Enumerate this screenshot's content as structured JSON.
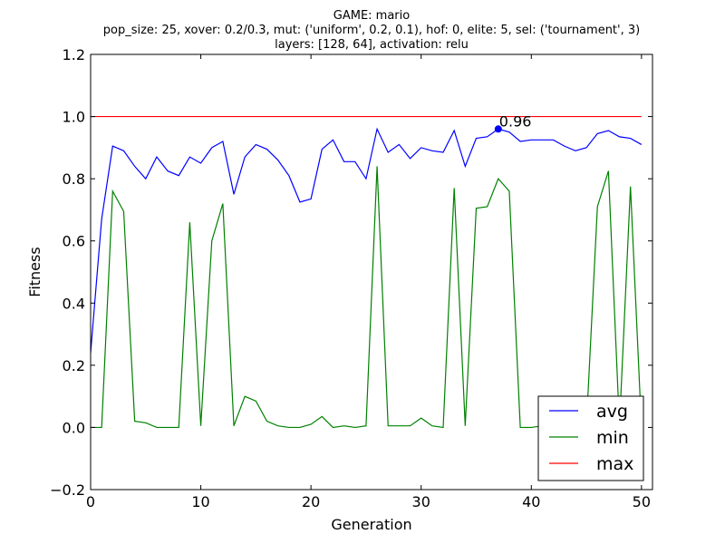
{
  "chart_data": {
    "type": "line",
    "title_lines": [
      "GAME: mario",
      "pop_size: 25, xover: 0.2/0.3, mut: ('uniform', 0.2, 0.1), hof: 0, elite: 5, sel: ('tournament', 3)",
      "layers: [128, 64], activation: relu"
    ],
    "xlabel": "Generation",
    "ylabel": "Fitness",
    "xlim": [
      0,
      51
    ],
    "ylim": [
      -0.2,
      1.2
    ],
    "xticks": [
      0,
      10,
      20,
      30,
      40,
      50
    ],
    "xtick_labels": [
      "0",
      "10",
      "20",
      "30",
      "40",
      "50"
    ],
    "yticks": [
      -0.2,
      0.0,
      0.2,
      0.4,
      0.6,
      0.8,
      1.0,
      1.2
    ],
    "ytick_labels": [
      "−0.2",
      "0.0",
      "0.2",
      "0.4",
      "0.6",
      "0.8",
      "1.0",
      "1.2"
    ],
    "grid": false,
    "legend_position": "lower-right",
    "x": [
      0,
      1,
      2,
      3,
      4,
      5,
      6,
      7,
      8,
      9,
      10,
      11,
      12,
      13,
      14,
      15,
      16,
      17,
      18,
      19,
      20,
      21,
      22,
      23,
      24,
      25,
      26,
      27,
      28,
      29,
      30,
      31,
      32,
      33,
      34,
      35,
      36,
      37,
      38,
      39,
      40,
      41,
      42,
      43,
      44,
      45,
      46,
      47,
      48,
      49,
      50
    ],
    "series": [
      {
        "name": "avg",
        "color": "#0000ff",
        "values": [
          0.24,
          0.67,
          0.905,
          0.89,
          0.84,
          0.8,
          0.87,
          0.825,
          0.81,
          0.87,
          0.85,
          0.9,
          0.92,
          0.75,
          0.87,
          0.91,
          0.895,
          0.86,
          0.81,
          0.725,
          0.735,
          0.895,
          0.925,
          0.855,
          0.855,
          0.8,
          0.96,
          0.885,
          0.91,
          0.865,
          0.9,
          0.89,
          0.885,
          0.955,
          0.84,
          0.93,
          0.935,
          0.96,
          0.95,
          0.92,
          0.925,
          0.925,
          0.925,
          0.905,
          0.89,
          0.9,
          0.945,
          0.955,
          0.935,
          0.93,
          0.91
        ]
      },
      {
        "name": "min",
        "color": "#008000",
        "values": [
          0.0,
          0.0,
          0.76,
          0.695,
          0.02,
          0.015,
          0.0,
          0.0,
          0.0,
          0.66,
          0.005,
          0.6,
          0.72,
          0.005,
          0.1,
          0.085,
          0.02,
          0.005,
          0.0,
          0.0,
          0.01,
          0.035,
          0.0,
          0.005,
          0.0,
          0.005,
          0.84,
          0.005,
          0.005,
          0.005,
          0.03,
          0.005,
          0.0,
          0.77,
          0.005,
          0.705,
          0.71,
          0.8,
          0.76,
          0.0,
          0.0,
          0.005,
          0.005,
          0.005,
          0.005,
          0.005,
          0.71,
          0.825,
          0.005,
          0.775,
          0.0
        ]
      },
      {
        "name": "max",
        "color": "#ff0000",
        "values": [
          1.0,
          1.0,
          1.0,
          1.0,
          1.0,
          1.0,
          1.0,
          1.0,
          1.0,
          1.0,
          1.0,
          1.0,
          1.0,
          1.0,
          1.0,
          1.0,
          1.0,
          1.0,
          1.0,
          1.0,
          1.0,
          1.0,
          1.0,
          1.0,
          1.0,
          1.0,
          1.0,
          1.0,
          1.0,
          1.0,
          1.0,
          1.0,
          1.0,
          1.0,
          1.0,
          1.0,
          1.0,
          1.0,
          1.0,
          1.0,
          1.0,
          1.0,
          1.0,
          1.0,
          1.0,
          1.0,
          1.0,
          1.0,
          1.0,
          1.0,
          1.0
        ]
      }
    ],
    "annotation": {
      "x": 37,
      "y": 0.96,
      "label": "0.96"
    }
  }
}
